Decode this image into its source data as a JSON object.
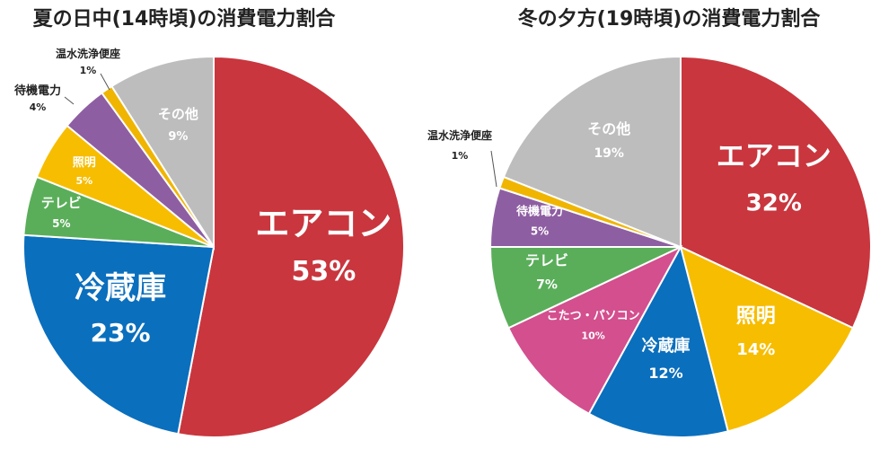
{
  "chart_data": [
    {
      "type": "pie",
      "title": "夏の日中(14時頃)の消費電力割合",
      "slices": [
        {
          "name": "エアコン",
          "value": 53,
          "label": "53%",
          "color": "#c9363e"
        },
        {
          "name": "冷蔵庫",
          "value": 23,
          "label": "23%",
          "color": "#0a6fbd"
        },
        {
          "name": "テレビ",
          "value": 5,
          "label": "5%",
          "color": "#5aae5a"
        },
        {
          "name": "照明",
          "value": 5,
          "label": "5%",
          "color": "#f7bd00"
        },
        {
          "name": "待機電力",
          "value": 4,
          "label": "4%",
          "color": "#8e5ea2"
        },
        {
          "name": "温水洗浄便座",
          "value": 1,
          "label": "1%",
          "color": "#f0b500"
        },
        {
          "name": "その他",
          "value": 9,
          "label": "9%",
          "color": "#bdbdbd"
        }
      ]
    },
    {
      "type": "pie",
      "title": "冬の夕方(19時頃)の消費電力割合",
      "slices": [
        {
          "name": "エアコン",
          "value": 32,
          "label": "32%",
          "color": "#c9363e"
        },
        {
          "name": "照明",
          "value": 14,
          "label": "14%",
          "color": "#f7bd00"
        },
        {
          "name": "冷蔵庫",
          "value": 12,
          "label": "12%",
          "color": "#0a6fbd"
        },
        {
          "name": "こたつ・パソコン",
          "value": 10,
          "label": "10%",
          "color": "#d34f8e"
        },
        {
          "name": "テレビ",
          "value": 7,
          "label": "7%",
          "color": "#5aae5a"
        },
        {
          "name": "待機電力",
          "value": 5,
          "label": "5%",
          "color": "#8e5ea2"
        },
        {
          "name": "温水洗浄便座",
          "value": 1,
          "label": "1%",
          "color": "#f0b500"
        },
        {
          "name": "その他",
          "value": 19,
          "label": "19%",
          "color": "#bdbdbd"
        }
      ]
    }
  ]
}
